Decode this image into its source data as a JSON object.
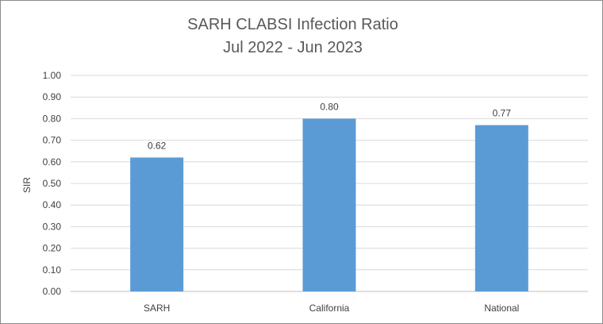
{
  "chart_data": {
    "type": "bar",
    "title": "SARH CLABSI Infection Ratio",
    "subtitle": "Jul 2022 - Jun 2023",
    "xlabel": "",
    "ylabel": "SIR",
    "categories": [
      "SARH",
      "California",
      "National"
    ],
    "values": [
      0.62,
      0.8,
      0.77
    ],
    "data_labels": [
      "0.62",
      "0.80",
      "0.77"
    ],
    "ylim": [
      0,
      1.0
    ],
    "yticks": [
      "0.00",
      "0.10",
      "0.20",
      "0.30",
      "0.40",
      "0.50",
      "0.60",
      "0.70",
      "0.80",
      "0.90",
      "1.00"
    ],
    "grid": true,
    "legend": "none",
    "colors": {
      "bar": "#5b9bd5",
      "grid": "#d9d9d9",
      "text": "#404040",
      "title": "#595959"
    }
  }
}
